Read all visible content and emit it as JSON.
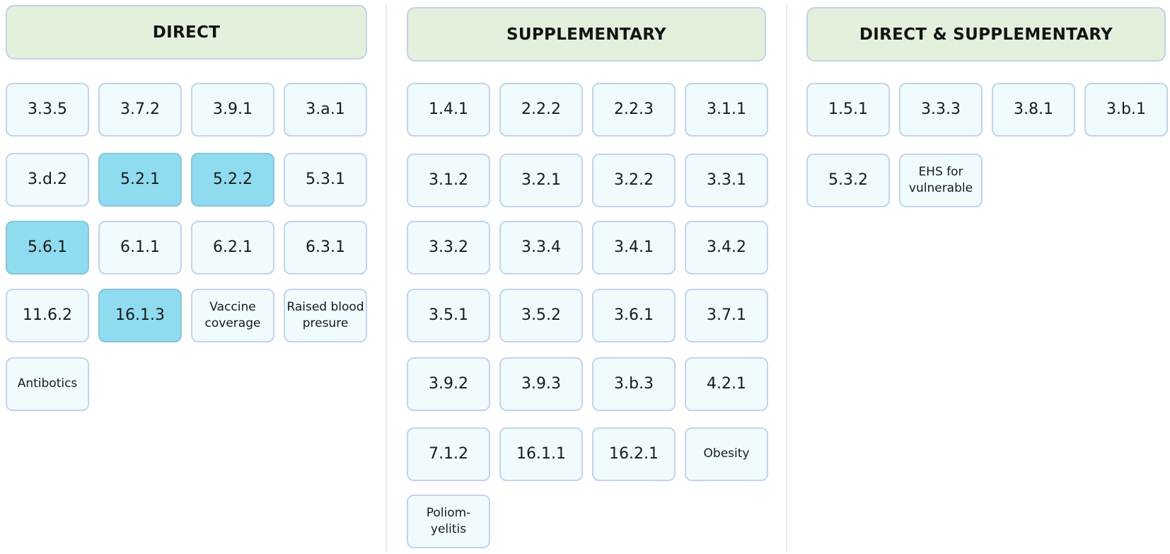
{
  "columns": [
    {
      "title": "DIRECT",
      "items": [
        {
          "label": "3.3.5"
        },
        {
          "label": "3.7.2"
        },
        {
          "label": "3.9.1"
        },
        {
          "label": "3.a.1"
        },
        {
          "label": "3.d.2"
        },
        {
          "label": "5.2.1",
          "highlighted": true
        },
        {
          "label": "5.2.2",
          "highlighted": true
        },
        {
          "label": "5.3.1"
        },
        {
          "label": "5.6.1",
          "highlighted": true
        },
        {
          "label": "6.1.1"
        },
        {
          "label": "6.2.1"
        },
        {
          "label": "6.3.1"
        },
        {
          "label": "11.6.2"
        },
        {
          "label": "16.1.3",
          "highlighted": true
        },
        {
          "label": "Vaccine coverage"
        },
        {
          "label": "Raised blood presure"
        },
        {
          "label": "Antibotics"
        }
      ]
    },
    {
      "title": "SUPPLEMENTARY",
      "items": [
        {
          "label": "1.4.1"
        },
        {
          "label": "2.2.2"
        },
        {
          "label": "2.2.3"
        },
        {
          "label": "3.1.1"
        },
        {
          "label": "3.1.2"
        },
        {
          "label": "3.2.1"
        },
        {
          "label": "3.2.2"
        },
        {
          "label": "3.3.1"
        },
        {
          "label": "3.3.2"
        },
        {
          "label": "3.3.4"
        },
        {
          "label": "3.4.1"
        },
        {
          "label": "3.4.2"
        },
        {
          "label": "3.5.1"
        },
        {
          "label": "3.5.2"
        },
        {
          "label": "3.6.1"
        },
        {
          "label": "3.7.1"
        },
        {
          "label": "3.9.2"
        },
        {
          "label": "3.9.3"
        },
        {
          "label": "3.b.3"
        },
        {
          "label": "4.2.1"
        },
        {
          "label": "7.1.2"
        },
        {
          "label": "16.1.1"
        },
        {
          "label": "16.2.1"
        },
        {
          "label": "Obesity"
        },
        {
          "label": "Poliom-\nyelitis"
        }
      ]
    },
    {
      "title": "DIRECT & SUPPLEMENTARY",
      "items": [
        {
          "label": "1.5.1"
        },
        {
          "label": "3.3.3"
        },
        {
          "label": "3.8.1"
        },
        {
          "label": "3.b.1"
        },
        {
          "label": "5.3.2"
        },
        {
          "label": "EHS for vulnerable"
        }
      ]
    }
  ],
  "colors": {
    "header_fill": "#e3f0dc",
    "cell_fill": "#effbfc",
    "highlight_fill": "#8fdbef",
    "border": "#c3d3ec"
  }
}
